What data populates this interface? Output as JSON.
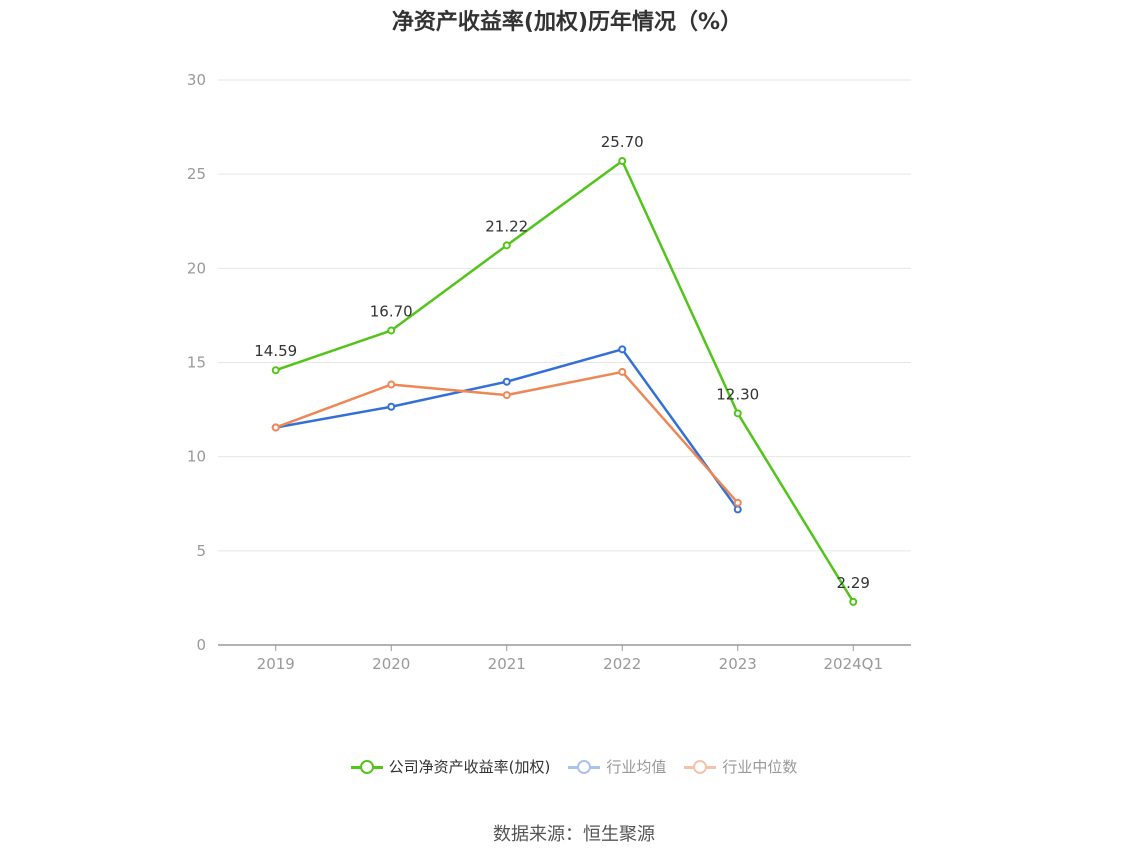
{
  "chart_data": {
    "type": "line",
    "title": "净资产收益率(加权)历年情况（%）",
    "categories": [
      "2019",
      "2020",
      "2021",
      "2022",
      "2023",
      "2024Q1"
    ],
    "ylim": [
      0,
      30
    ],
    "yticks": [
      "0",
      "5",
      "10",
      "15",
      "20",
      "25",
      "30"
    ],
    "grid": true,
    "legend_position": "bottom",
    "series": [
      {
        "name": "公司净资产收益率(加权)",
        "color": "#52c41a",
        "values": [
          14.59,
          16.7,
          21.22,
          25.7,
          12.3,
          2.29
        ],
        "labels": [
          "14.59",
          "16.70",
          "21.22",
          "25.70",
          "12.30",
          "2.29"
        ]
      },
      {
        "name": "行业均值",
        "color": "#3370d6",
        "values": [
          11.55,
          12.65,
          13.98,
          15.7,
          7.2,
          null
        ]
      },
      {
        "name": "行业中位数",
        "color": "#ee8756",
        "values": [
          11.55,
          13.83,
          13.27,
          14.5,
          7.55,
          null
        ]
      }
    ],
    "legend_colors": [
      "#52c41a",
      "#a9c2ee",
      "#f5c3ac"
    ]
  },
  "source": "数据来源：恒生聚源"
}
